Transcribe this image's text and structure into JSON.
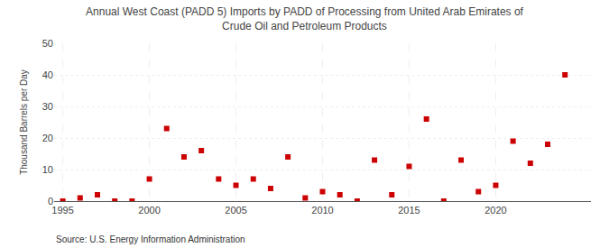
{
  "chart_data": {
    "type": "scatter",
    "title": "Annual West Coast (PADD 5) Imports by PADD of Processing from United Arab Emirates of\nCrude Oil and Petroleum Products",
    "ylabel": "Thousand Barrels per Day",
    "annotations": [
      "Source: U.S. Energy Information Administration"
    ],
    "x": [
      1995,
      1996,
      1997,
      1998,
      1999,
      2000,
      2001,
      2002,
      2003,
      2004,
      2005,
      2006,
      2007,
      2008,
      2009,
      2010,
      2011,
      2012,
      2013,
      2014,
      2015,
      2016,
      2017,
      2018,
      2019,
      2020,
      2021,
      2022,
      2023,
      2024
    ],
    "values": [
      0,
      1,
      2,
      0,
      0,
      7,
      23,
      14,
      16,
      7,
      5,
      7,
      4,
      14,
      1,
      3,
      2,
      0,
      13,
      2,
      11,
      26,
      0,
      13,
      3,
      5,
      19,
      12,
      18,
      40
    ],
    "color": "#cc0000",
    "marker": "square",
    "xlim": [
      1994.5,
      2025.5
    ],
    "ylim": [
      0,
      50
    ],
    "xticks": [
      1995,
      2000,
      2005,
      2010,
      2015,
      2020
    ],
    "yticks": [
      0,
      10,
      20,
      30,
      40,
      50
    ],
    "grid": true
  }
}
